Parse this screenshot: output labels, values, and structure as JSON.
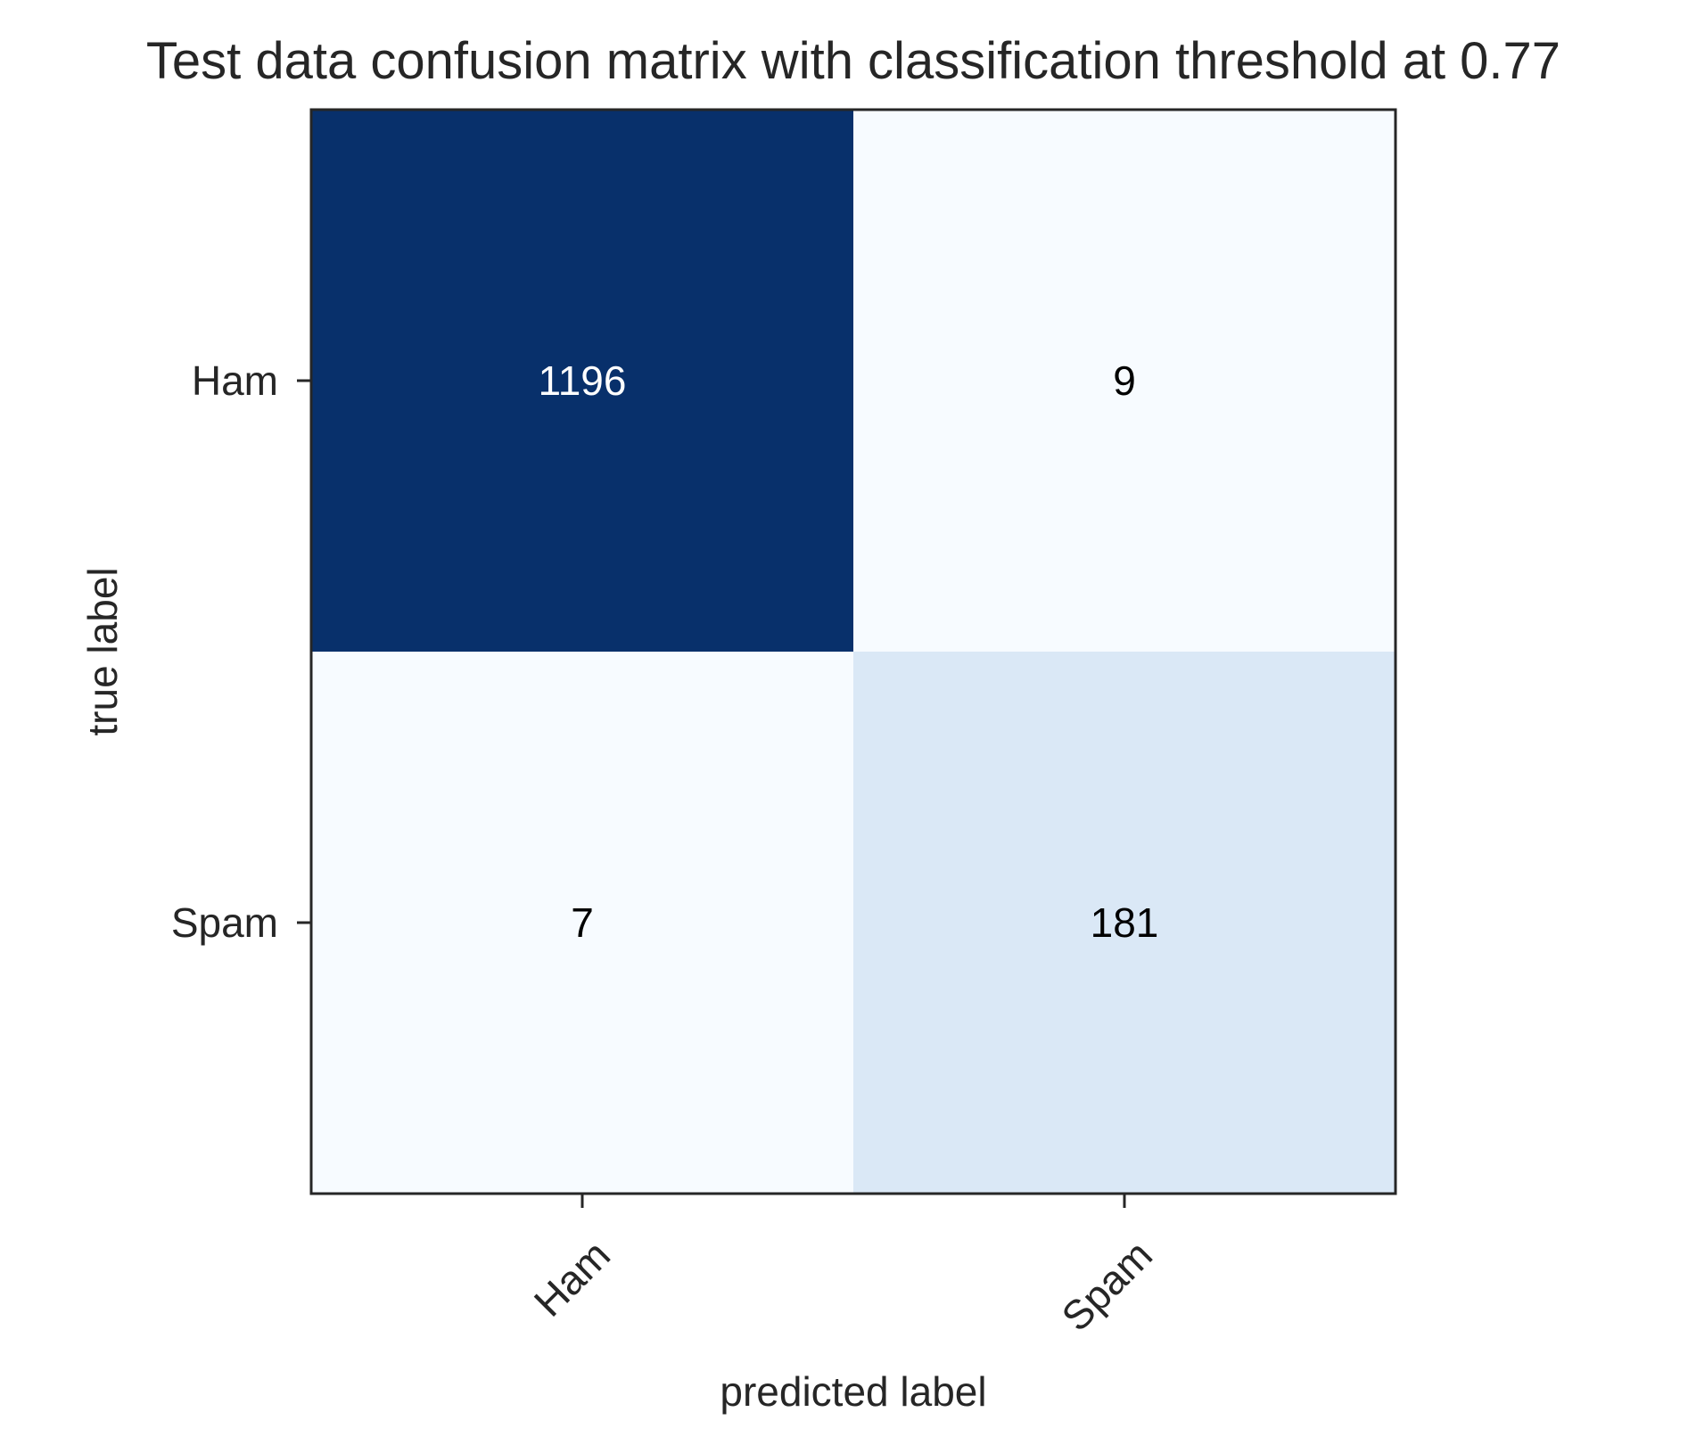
{
  "chart_data": {
    "type": "heatmap",
    "title": "Test data confusion matrix with classification threshold at 0.77",
    "xlabel": "predicted label",
    "ylabel": "true label",
    "x_categories": [
      "Ham",
      "Spam"
    ],
    "y_categories": [
      "Ham",
      "Spam"
    ],
    "values": [
      [
        1196,
        9
      ],
      [
        7,
        181
      ]
    ],
    "colormap": "Blues",
    "colors": {
      "low": "#f7fbff",
      "high": "#08306b",
      "text_dark": "#000000",
      "text_light": "#ffffff",
      "frame": "#262626"
    },
    "grid": false,
    "legend": "none"
  }
}
